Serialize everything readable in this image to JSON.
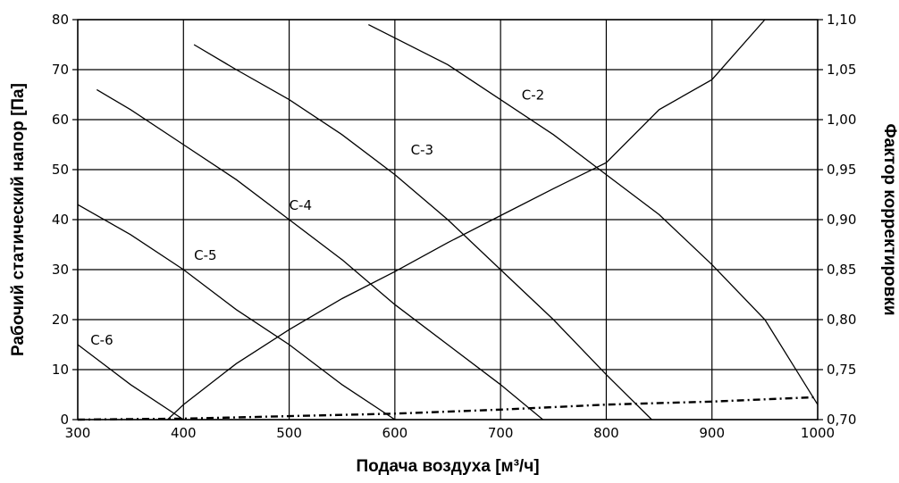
{
  "chart_data": {
    "type": "line",
    "title": "",
    "xlabel": "Подача воздуха [м³/ч]",
    "ylabel": "Рабочий статический напор [Па]",
    "y2label": "Фактор корректировки",
    "xlim": [
      300,
      1000
    ],
    "ylim": [
      0,
      80
    ],
    "y2lim": [
      0.7,
      1.1
    ],
    "grid": true,
    "x_ticks": [
      "300",
      "400",
      "500",
      "600",
      "700",
      "800",
      "900",
      "1000"
    ],
    "y_ticks": [
      "0",
      "10",
      "20",
      "30",
      "40",
      "50",
      "60",
      "70",
      "80"
    ],
    "y2_ticks": [
      "0,70",
      "0,75",
      "0,80",
      "0,85",
      "0,90",
      "0,95",
      "1,00",
      "1,05",
      "1,10"
    ],
    "series": [
      {
        "name": "C-2",
        "axis": "left",
        "style": "solid",
        "x": [
          575,
          650,
          700,
          750,
          800,
          850,
          900,
          950,
          1000
        ],
        "y": [
          79,
          71,
          64,
          57,
          49,
          41,
          31,
          20,
          3
        ]
      },
      {
        "name": "C-3",
        "axis": "left",
        "style": "solid",
        "x": [
          410,
          450,
          500,
          550,
          600,
          650,
          700,
          750,
          800,
          843
        ],
        "y": [
          75,
          70,
          64,
          57,
          49,
          40,
          30,
          20,
          9,
          0
        ]
      },
      {
        "name": "C-4",
        "axis": "left",
        "style": "solid",
        "x": [
          318,
          350,
          400,
          450,
          500,
          550,
          600,
          650,
          700,
          740
        ],
        "y": [
          66,
          62,
          55,
          48,
          40,
          32,
          23,
          15,
          7,
          0
        ]
      },
      {
        "name": "C-5",
        "axis": "left",
        "style": "solid",
        "x": [
          300,
          350,
          400,
          450,
          500,
          550,
          600
        ],
        "y": [
          43,
          37,
          30,
          22,
          15,
          7,
          0
        ]
      },
      {
        "name": "C-6",
        "axis": "left",
        "style": "solid",
        "x": [
          300,
          350,
          400
        ],
        "y": [
          15,
          7,
          0
        ]
      },
      {
        "name": "",
        "axis": "right",
        "style": "solid",
        "x": [
          385,
          400,
          450,
          500,
          550,
          600,
          650,
          700,
          750,
          800,
          850,
          900,
          950
        ],
        "y": [
          0.7,
          0.715,
          0.756,
          0.79,
          0.821,
          0.848,
          0.877,
          0.904,
          0.931,
          0.957,
          1.01,
          1.04,
          1.1
        ]
      },
      {
        "name": "",
        "axis": "left",
        "style": "dashed",
        "x": [
          300,
          400,
          500,
          600,
          700,
          800,
          900,
          1000
        ],
        "y": [
          0,
          0.2,
          0.7,
          1.2,
          2.0,
          3.0,
          3.6,
          4.5
        ]
      }
    ],
    "annotations": [
      {
        "text": "C-2",
        "x": 720,
        "y": 64
      },
      {
        "text": "C-3",
        "x": 615,
        "y": 53
      },
      {
        "text": "C-4",
        "x": 500,
        "y": 42
      },
      {
        "text": "C-5",
        "x": 410,
        "y": 32
      },
      {
        "text": "C-6",
        "x": 312,
        "y": 15
      }
    ]
  }
}
